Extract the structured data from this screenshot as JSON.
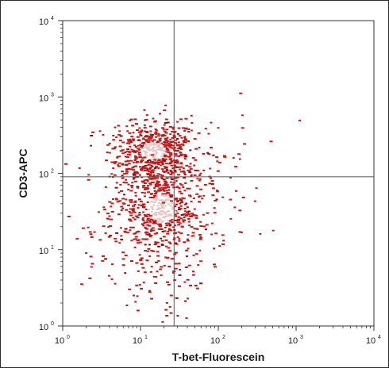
{
  "chart_data": {
    "type": "scatter",
    "title": "",
    "xlabel": "T-bet-Fluorescein",
    "ylabel": "CD3-APC",
    "x_scale": "log",
    "y_scale": "log",
    "xlim": [
      1,
      10000
    ],
    "ylim": [
      1,
      10000
    ],
    "x_ticks": [
      {
        "base": "10",
        "exp": "0"
      },
      {
        "base": "10",
        "exp": "1"
      },
      {
        "base": "10",
        "exp": "2"
      },
      {
        "base": "10",
        "exp": "3"
      },
      {
        "base": "10",
        "exp": "4"
      }
    ],
    "y_ticks": [
      {
        "base": "10",
        "exp": "0"
      },
      {
        "base": "10",
        "exp": "1"
      },
      {
        "base": "10",
        "exp": "2"
      },
      {
        "base": "10",
        "exp": "3"
      },
      {
        "base": "10",
        "exp": "4"
      }
    ],
    "quadrant_gates": {
      "x": 27,
      "y": 90
    },
    "point_color": "#c41a1a",
    "dense_center_color": "#e8c6c6",
    "grid": false,
    "populations": [
      {
        "name": "",
        "center": [
          14,
          200
        ],
        "spread_log": [
          0.28,
          0.2
        ],
        "count": 520
      },
      {
        "name": "",
        "center": [
          18,
          35
        ],
        "spread_log": [
          0.3,
          0.32
        ],
        "count": 560
      },
      {
        "name": "",
        "center": [
          60,
          60
        ],
        "spread_log": [
          0.5,
          0.45
        ],
        "count": 90
      },
      {
        "name": "",
        "center": [
          20,
          4
        ],
        "spread_log": [
          0.25,
          0.3
        ],
        "count": 60
      },
      {
        "name": "",
        "center": [
          5,
          15
        ],
        "spread_log": [
          0.4,
          0.4
        ],
        "count": 70
      }
    ]
  }
}
